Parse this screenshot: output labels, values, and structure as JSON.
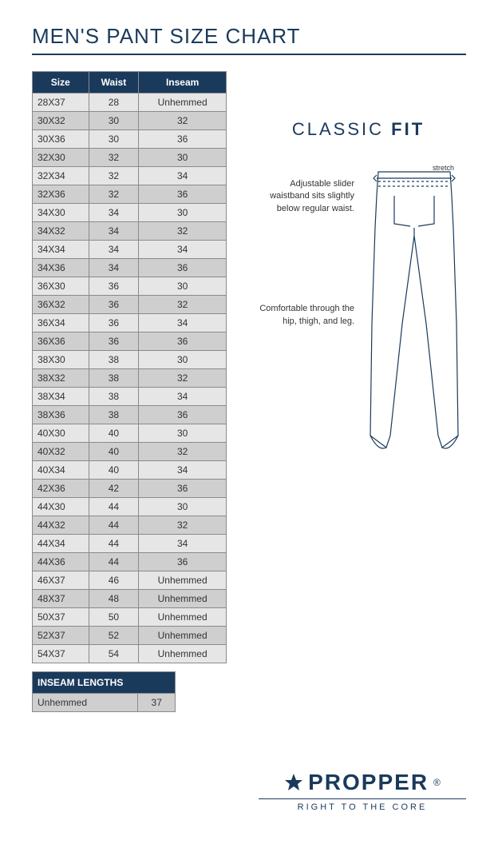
{
  "title": "MEN'S PANT SIZE CHART",
  "table": {
    "columns": [
      "Size",
      "Waist",
      "Inseam"
    ],
    "rows": [
      [
        "28X37",
        "28",
        "Unhemmed"
      ],
      [
        "30X32",
        "30",
        "32"
      ],
      [
        "30X36",
        "30",
        "36"
      ],
      [
        "32X30",
        "32",
        "30"
      ],
      [
        "32X34",
        "32",
        "34"
      ],
      [
        "32X36",
        "32",
        "36"
      ],
      [
        "34X30",
        "34",
        "30"
      ],
      [
        "34X32",
        "34",
        "32"
      ],
      [
        "34X34",
        "34",
        "34"
      ],
      [
        "34X36",
        "34",
        "36"
      ],
      [
        "36X30",
        "36",
        "30"
      ],
      [
        "36X32",
        "36",
        "32"
      ],
      [
        "36X34",
        "36",
        "34"
      ],
      [
        "36X36",
        "36",
        "36"
      ],
      [
        "38X30",
        "38",
        "30"
      ],
      [
        "38X32",
        "38",
        "32"
      ],
      [
        "38X34",
        "38",
        "34"
      ],
      [
        "38X36",
        "38",
        "36"
      ],
      [
        "40X30",
        "40",
        "30"
      ],
      [
        "40X32",
        "40",
        "32"
      ],
      [
        "40X34",
        "40",
        "34"
      ],
      [
        "42X36",
        "42",
        "36"
      ],
      [
        "44X30",
        "44",
        "30"
      ],
      [
        "44X32",
        "44",
        "32"
      ],
      [
        "44X34",
        "44",
        "34"
      ],
      [
        "44X36",
        "44",
        "36"
      ],
      [
        "46X37",
        "46",
        "Unhemmed"
      ],
      [
        "48X37",
        "48",
        "Unhemmed"
      ],
      [
        "50X37",
        "50",
        "Unhemmed"
      ],
      [
        "52X37",
        "52",
        "Unhemmed"
      ],
      [
        "54X37",
        "54",
        "Unhemmed"
      ]
    ],
    "header_bg": "#1a3a5c",
    "header_fg": "#ffffff",
    "row_even_bg": "#e6e6e6",
    "row_odd_bg": "#cfcfcf",
    "border_color": "#8a8a8a"
  },
  "inseam": {
    "header": "INSEAM LENGTHS",
    "label": "Unhemmed",
    "value": "37"
  },
  "fit": {
    "title_light": "CLASSIC",
    "title_bold": "FIT",
    "stretch_label": "stretch",
    "label1": "Adjustable slider waistband sits slightly below regular waist.",
    "label2": "Comfortable through the hip, thigh, and leg.",
    "line_color": "#1a3a5c"
  },
  "brand": {
    "name": "PROPPER",
    "reg": "®",
    "tagline": "RIGHT TO THE CORE",
    "color": "#1a3a5c"
  }
}
